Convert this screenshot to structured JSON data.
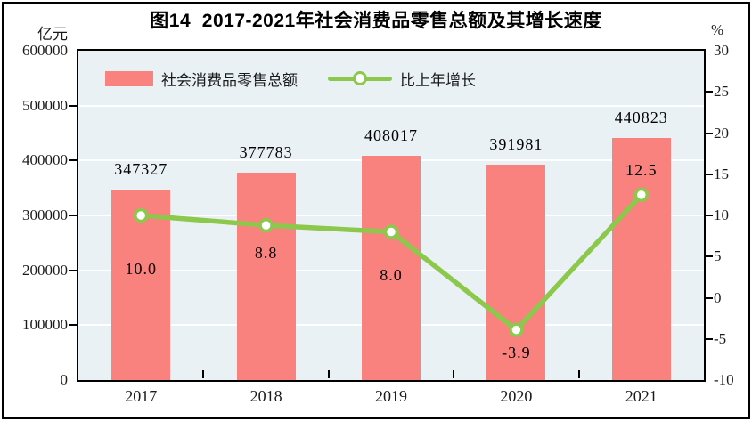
{
  "figure": {
    "title": "图14  2017-2021年社会消费品零售总额及其增长速度",
    "left_axis": {
      "unit": "亿元",
      "ticks": [
        "600000",
        "500000",
        "400000",
        "300000",
        "200000",
        "100000",
        "0"
      ],
      "min": 0,
      "max": 600000
    },
    "right_axis": {
      "unit": "%",
      "ticks": [
        "30",
        "25",
        "20",
        "15",
        "10",
        "5",
        "0",
        "-5",
        "-10"
      ],
      "min": -10,
      "max": 30
    },
    "legend": [
      {
        "label": "社会消费品零售总额",
        "type": "bar",
        "color": "#F9827E"
      },
      {
        "label": "比上年增长",
        "type": "line",
        "color": "#8CC84B"
      }
    ]
  },
  "chart_data": {
    "type": "bar+line",
    "title": "图14  2017-2021年社会消费品零售总额及其增长速度",
    "categories": [
      "2017",
      "2018",
      "2019",
      "2020",
      "2021"
    ],
    "series": [
      {
        "name": "社会消费品零售总额",
        "type": "bar",
        "axis": "left",
        "unit": "亿元",
        "values": [
          347327,
          377783,
          408017,
          391981,
          440823
        ],
        "labels": [
          "347327",
          "377783",
          "408017",
          "391981",
          "440823"
        ],
        "color": "#F9827E"
      },
      {
        "name": "比上年增长",
        "type": "line",
        "axis": "right",
        "unit": "%",
        "values": [
          10.0,
          8.8,
          8.0,
          -3.9,
          12.5
        ],
        "labels": [
          "10.0",
          "8.8",
          "8.0",
          "-3.9",
          "12.5"
        ],
        "color": "#8CC84B",
        "marker": "circle-white-fill"
      }
    ],
    "left_ylim": [
      0,
      600000
    ],
    "right_ylim": [
      -10,
      30
    ],
    "grid": true,
    "gridline_color": "#ffffff",
    "plot_bg": "#E9F1F5",
    "legend_position": "top-inside"
  }
}
